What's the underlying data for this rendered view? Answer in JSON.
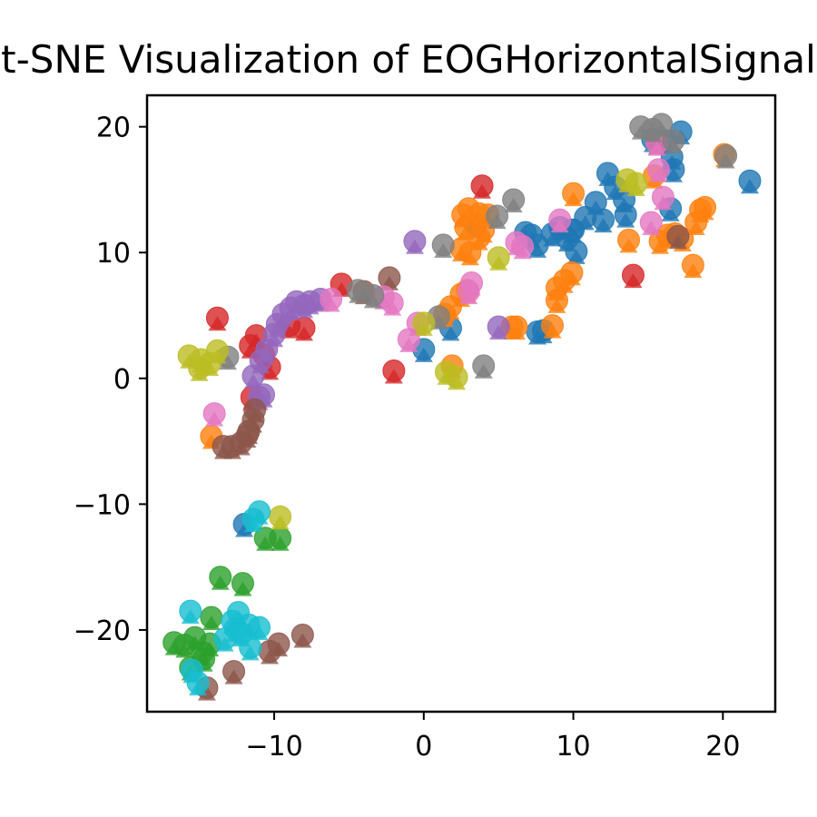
{
  "chart_data": {
    "type": "scatter",
    "title": "t-SNE Visualization of EOGHorizontalSignal",
    "xlabel": "",
    "ylabel": "",
    "xlim": [
      -18.5,
      23.5
    ],
    "ylim": [
      -26.5,
      22.5
    ],
    "xticks": [
      -10,
      0,
      10,
      20
    ],
    "yticks": [
      -20,
      -10,
      0,
      10,
      20
    ],
    "xtick_labels": [
      "−10",
      "0",
      "10",
      "20"
    ],
    "ytick_labels": [
      "−20",
      "−10",
      "0",
      "10",
      "20"
    ],
    "grid": false,
    "legend": "none",
    "marker_alpha": 0.8,
    "series": [
      {
        "color": "#1f77b4",
        "points": [
          [
            15.3,
            19
          ],
          [
            16.2,
            18.9
          ],
          [
            17.2,
            19.6
          ],
          [
            16.6,
            17.6
          ],
          [
            16.7,
            16.6
          ],
          [
            12.3,
            16.3
          ],
          [
            12.8,
            15.2
          ],
          [
            21.8,
            15.7
          ],
          [
            11.5,
            14.0
          ],
          [
            10.8,
            12.8
          ],
          [
            12.0,
            12.6
          ],
          [
            13.4,
            14.2
          ],
          [
            13.5,
            13.0
          ],
          [
            16.5,
            13.5
          ],
          [
            9.1,
            12.0
          ],
          [
            10.0,
            11.8
          ],
          [
            9.6,
            11.1
          ],
          [
            10.2,
            10.1
          ],
          [
            9.9,
            11.8
          ],
          [
            8.6,
            11.5
          ],
          [
            6.8,
            11.6
          ],
          [
            7.2,
            11.4
          ],
          [
            7.6,
            10.6
          ],
          [
            8.0,
            3.8
          ],
          [
            7.6,
            3.7
          ],
          [
            1.8,
            4.0
          ],
          [
            0.0,
            2.3
          ],
          [
            3.5,
            12.2
          ],
          [
            -12.0,
            -11.6
          ]
        ]
      },
      {
        "color": "#ff7f0e",
        "points": [
          [
            2.6,
            13.0
          ],
          [
            3.0,
            13.5
          ],
          [
            3.7,
            13.1
          ],
          [
            4.3,
            13.0
          ],
          [
            2.8,
            12.0
          ],
          [
            4.0,
            11.8
          ],
          [
            2.5,
            10.3
          ],
          [
            3.1,
            10.0
          ],
          [
            3.7,
            11.2
          ],
          [
            2.5,
            6.7
          ],
          [
            2.9,
            7.0
          ],
          [
            1.8,
            5.7
          ],
          [
            1.4,
            5.1
          ],
          [
            1.9,
            1.0
          ],
          [
            5.9,
            4.1
          ],
          [
            6.2,
            4.1
          ],
          [
            8.6,
            4.2
          ],
          [
            8.9,
            7.2
          ],
          [
            9.4,
            7.8
          ],
          [
            9.9,
            8.4
          ],
          [
            8.9,
            6.2
          ],
          [
            13.7,
            11.0
          ],
          [
            15.4,
            16.1
          ],
          [
            15.8,
            10.9
          ],
          [
            16.3,
            11.4
          ],
          [
            16.8,
            11.5
          ],
          [
            17.3,
            11.1
          ],
          [
            18.2,
            12.4
          ],
          [
            18.5,
            13.4
          ],
          [
            18.8,
            13.6
          ],
          [
            18.0,
            9.0
          ],
          [
            20.1,
            17.8
          ],
          [
            10.0,
            14.7
          ],
          [
            -14.2,
            -4.6
          ]
        ]
      },
      {
        "color": "#2ca02c",
        "points": [
          [
            -16.7,
            -21.0
          ],
          [
            -16.0,
            -21.2
          ],
          [
            -15.3,
            -20.6
          ],
          [
            -14.8,
            -21.8
          ],
          [
            -14.3,
            -21.1
          ],
          [
            -14.2,
            -19.0
          ],
          [
            -13.6,
            -15.8
          ],
          [
            -12.1,
            -16.3
          ],
          [
            -10.6,
            -12.7
          ],
          [
            -9.6,
            -12.7
          ],
          [
            -15.6,
            -23.0
          ],
          [
            -14.7,
            -22.3
          ]
        ]
      },
      {
        "color": "#d62728",
        "points": [
          [
            -13.8,
            4.8
          ],
          [
            -11.2,
            3.4
          ],
          [
            -11.6,
            2.6
          ],
          [
            -10.7,
            1.9
          ],
          [
            -10.3,
            0.9
          ],
          [
            -9.0,
            4.2
          ],
          [
            -8.0,
            4.0
          ],
          [
            -5.5,
            7.5
          ],
          [
            3.9,
            15.3
          ],
          [
            -2.0,
            0.6
          ],
          [
            14.0,
            8.2
          ],
          [
            -11.5,
            -1.5
          ]
        ]
      },
      {
        "color": "#9467bd",
        "points": [
          [
            -0.6,
            10.9
          ],
          [
            -9.8,
            4.3
          ],
          [
            -9.4,
            5.1
          ],
          [
            -8.9,
            5.6
          ],
          [
            -8.5,
            6.1
          ],
          [
            -8.0,
            5.8
          ],
          [
            -7.6,
            6.1
          ],
          [
            -6.9,
            6.3
          ],
          [
            -10.0,
            3.5
          ],
          [
            -10.5,
            2.3
          ],
          [
            -10.9,
            1.4
          ],
          [
            -11.4,
            0.2
          ],
          [
            -11.0,
            -1.5
          ],
          [
            -10.7,
            -1.3
          ],
          [
            5.0,
            4.1
          ]
        ]
      },
      {
        "color": "#8c564b",
        "points": [
          [
            -12.8,
            -5.4
          ],
          [
            -12.2,
            -5.1
          ],
          [
            -11.7,
            -4.2
          ],
          [
            -11.4,
            -3.3
          ],
          [
            -11.3,
            -2.5
          ],
          [
            -11.8,
            -4.5
          ],
          [
            -13.4,
            -5.4
          ],
          [
            -2.3,
            8.0
          ],
          [
            -4.0,
            6.9
          ],
          [
            -14.5,
            -24.6
          ],
          [
            -12.7,
            -23.3
          ],
          [
            -10.3,
            -21.7
          ],
          [
            -9.7,
            -21.1
          ],
          [
            -8.1,
            -20.4
          ],
          [
            17.0,
            11.3
          ],
          [
            15.6,
            18.8
          ]
        ]
      },
      {
        "color": "#e377c2",
        "points": [
          [
            -14.0,
            -2.8
          ],
          [
            -6.2,
            6.3
          ],
          [
            -2.7,
            6.5
          ],
          [
            -2.1,
            6.0
          ],
          [
            -1.0,
            3.1
          ],
          [
            -0.4,
            4.4
          ],
          [
            3.2,
            7.6
          ],
          [
            3.0,
            6.9
          ],
          [
            6.2,
            10.8
          ],
          [
            6.6,
            10.5
          ],
          [
            9.1,
            12.6
          ],
          [
            15.2,
            12.4
          ],
          [
            15.7,
            16.6
          ],
          [
            15.6,
            18.7
          ],
          [
            16.0,
            14.4
          ]
        ]
      },
      {
        "color": "#7f7f7f",
        "points": [
          [
            14.5,
            20.0
          ],
          [
            15.9,
            20.2
          ],
          [
            15.3,
            19.8
          ],
          [
            16.7,
            18.9
          ],
          [
            20.2,
            17.7
          ],
          [
            6.0,
            14.2
          ],
          [
            4.9,
            12.9
          ],
          [
            1.3,
            10.6
          ],
          [
            4.0,
            1.0
          ],
          [
            1.0,
            4.9
          ],
          [
            -3.4,
            6.6
          ],
          [
            -13.1,
            1.7
          ],
          [
            -4.4,
            7.0
          ]
        ]
      },
      {
        "color": "#bcbd22",
        "points": [
          [
            -15.7,
            1.8
          ],
          [
            -14.9,
            1.5
          ],
          [
            -14.3,
            1.2
          ],
          [
            -13.8,
            2.2
          ],
          [
            -15.0,
            0.8
          ],
          [
            0.0,
            4.4
          ],
          [
            5.0,
            9.6
          ],
          [
            1.5,
            0.5
          ],
          [
            2.2,
            0.1
          ],
          [
            13.6,
            15.8
          ],
          [
            14.2,
            15.5
          ],
          [
            -9.6,
            -11.0
          ]
        ]
      },
      {
        "color": "#17becf",
        "points": [
          [
            -15.6,
            -18.5
          ],
          [
            -11.0,
            -10.6
          ],
          [
            -11.4,
            -11.2
          ],
          [
            -12.8,
            -19.3
          ],
          [
            -12.6,
            -19.9
          ],
          [
            -12.2,
            -20.3
          ],
          [
            -11.7,
            -19.6
          ],
          [
            -11.0,
            -19.8
          ],
          [
            -12.4,
            -18.6
          ],
          [
            -13.3,
            -20.7
          ],
          [
            -11.6,
            -21.4
          ],
          [
            -15.5,
            -23.2
          ],
          [
            -15.1,
            -24.2
          ]
        ]
      }
    ]
  }
}
